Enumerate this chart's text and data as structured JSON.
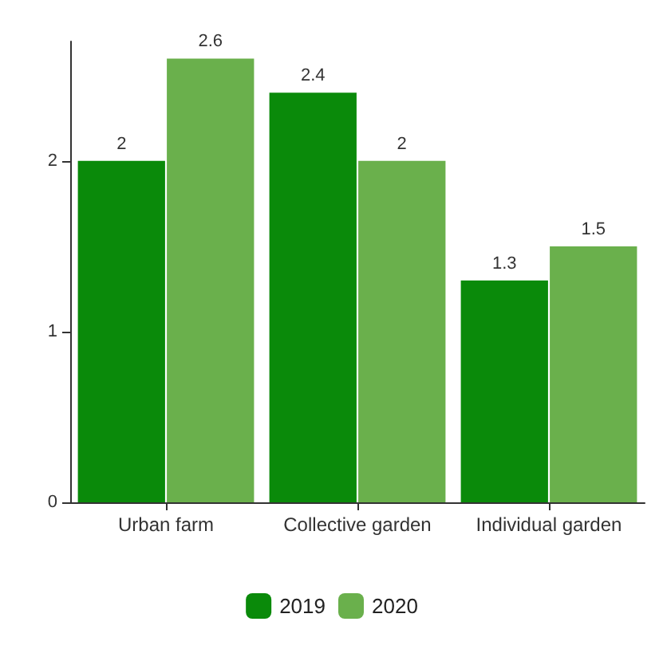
{
  "chart_data": {
    "type": "bar",
    "categories": [
      "Urban farm",
      "Collective garden",
      "Individual garden"
    ],
    "series": [
      {
        "name": "2019",
        "color": "#0a8a0a",
        "values": [
          2,
          2.4,
          1.3
        ]
      },
      {
        "name": "2020",
        "color": "#6ab04c",
        "values": [
          2.6,
          2,
          1.5
        ]
      }
    ],
    "ylim": [
      0,
      2.7
    ],
    "yticks": [
      0,
      1,
      2
    ],
    "data_labels": true,
    "grid": false,
    "legend": "bottom"
  }
}
